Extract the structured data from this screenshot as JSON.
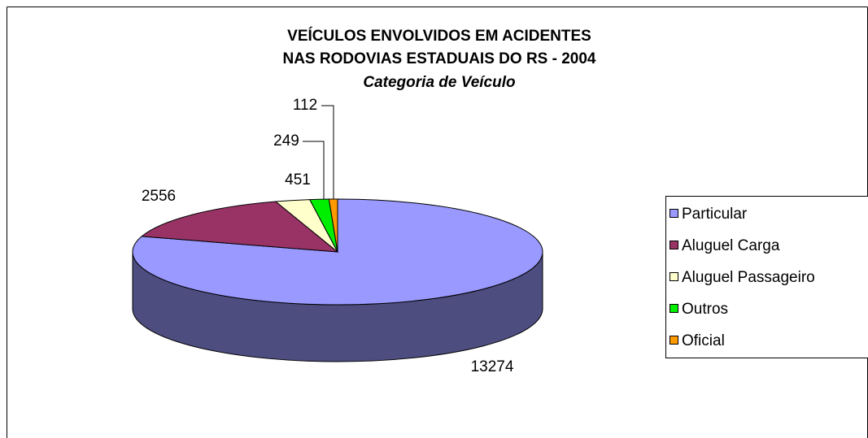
{
  "chart_data": {
    "type": "pie3d",
    "title": "VEÍCULOS ENVOLVIDOS EM ACIDENTES",
    "title_line2": "NAS RODOVIAS ESTADUAIS DO RS - 2004",
    "subtitle": "Categoria de Veículo",
    "categories": [
      "Particular",
      "Aluguel Carga",
      "Aluguel Passageiro",
      "Outros",
      "Oficial"
    ],
    "values": [
      13274,
      2556,
      451,
      249,
      112
    ],
    "colors": [
      "#9999ff",
      "#993366",
      "#ffffcc",
      "#00ee00",
      "#ff9900"
    ],
    "legend": "right"
  }
}
